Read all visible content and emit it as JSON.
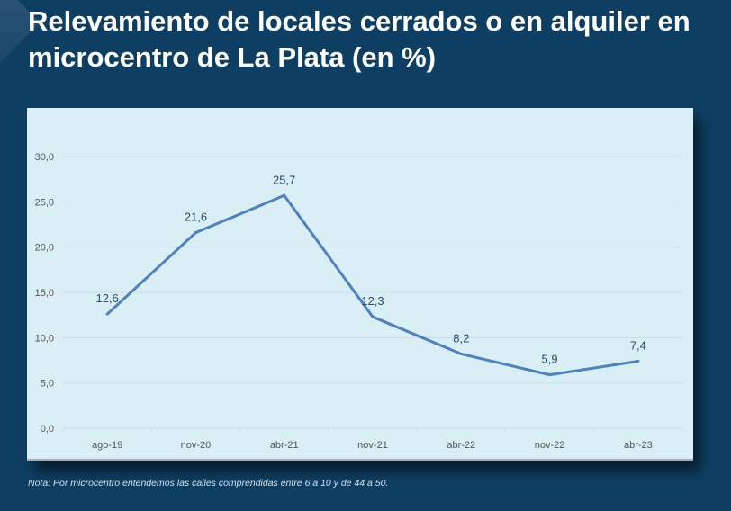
{
  "title": "Relevamiento de locales cerrados o en alquiler en microcentro de La Plata (en %)",
  "note": "Nota: Por microcentro entendemos las calles comprendidas entre 6 a 10 y de 44 a 50.",
  "chart_data": {
    "type": "line",
    "title": "Relevamiento de locales cerrados o en alquiler en microcentro de La Plata (en %)",
    "categories": [
      "ago-19",
      "nov-20",
      "abr-21",
      "nov-21",
      "abr-22",
      "nov-22",
      "abr-23"
    ],
    "series": [
      {
        "name": "Locales cerrados o en alquiler (%)",
        "values": [
          12.6,
          21.6,
          25.7,
          12.3,
          8.2,
          5.9,
          7.4
        ]
      }
    ],
    "data_labels": [
      "12,6",
      "21,6",
      "25,7",
      "12,3",
      "8,2",
      "5,9",
      "7,4"
    ],
    "yticks": [
      "0,0",
      "5,0",
      "10,0",
      "15,0",
      "20,0",
      "25,0",
      "30,0"
    ],
    "ylim": [
      0,
      30
    ],
    "grid": true,
    "line_color": "#4f81bd"
  }
}
